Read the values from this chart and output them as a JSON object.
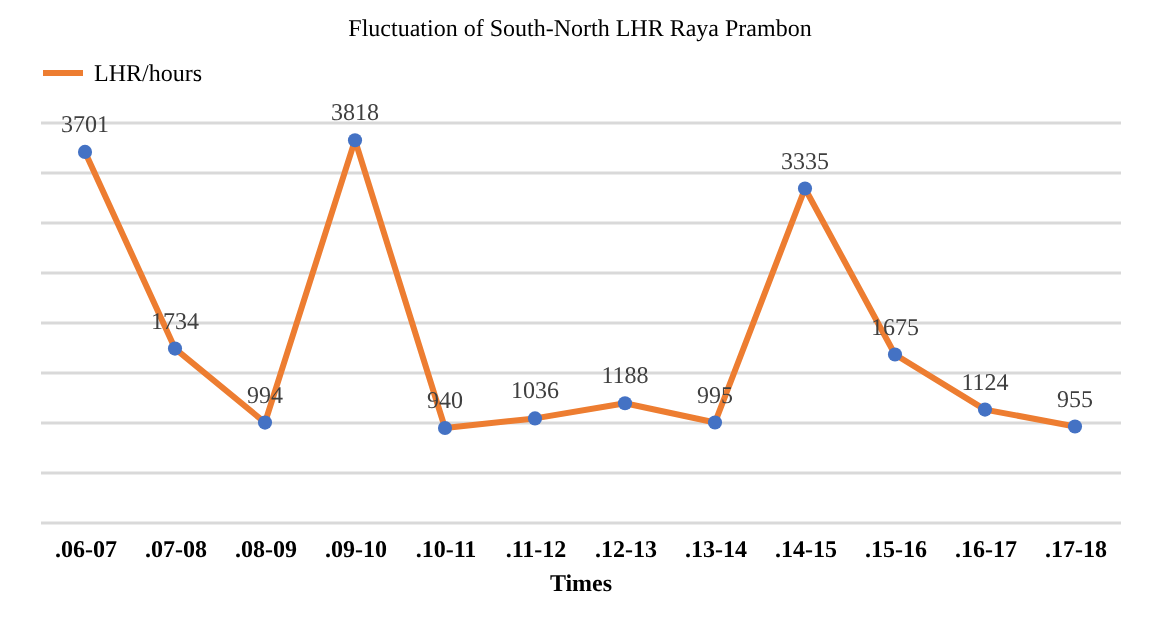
{
  "chart_data": {
    "type": "line",
    "title": "Fluctuation of South-North LHR Raya Prambon",
    "xlabel": "Times",
    "categories": [
      ".06-07",
      ".07-08",
      ".08-09",
      ".09-10",
      ".10-11",
      ".11-12",
      ".12-13",
      ".13-14",
      ".14-15",
      ".15-16",
      ".16-17",
      ".17-18"
    ],
    "series": [
      {
        "name": "LHR/hours",
        "color": "#ed7d31",
        "colors": [
          "#4472c4",
          "#4472c4",
          "#4472c4",
          "#4472c4",
          "#4472c4",
          "#4472c4",
          "#4472c4",
          "#4472c4",
          "#4472c4",
          "#4472c4",
          "#4472c4",
          "#4472c4"
        ],
        "values": [
          3701,
          1734,
          994,
          3818,
          940,
          1036,
          1188,
          995,
          3335,
          1675,
          1124,
          955
        ]
      }
    ],
    "tick_labels": "x",
    "grid": "y",
    "legend": "top",
    "marker": "circle",
    "line_style": "solid",
    "data_labels": true
  }
}
